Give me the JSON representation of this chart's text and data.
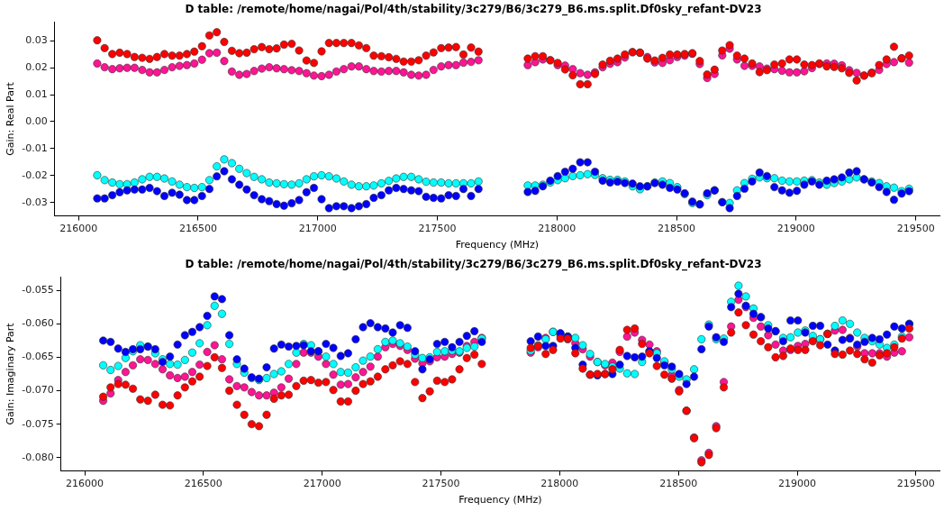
{
  "chart_data": [
    {
      "type": "scatter",
      "title": "D table: /remote/home/nagai/Pol/4th/stability/3c279/B6/3c279_B6.ms.split.Df0sky_refant-DV23",
      "xlabel": "Frequency (MHz)",
      "ylabel": "Gain: Real Part",
      "marker": "circle",
      "grid": false,
      "legend": false,
      "x": [
        216078,
        216109,
        216141,
        216172,
        216203,
        216234,
        216266,
        216297,
        216328,
        216359,
        216391,
        216422,
        216453,
        216484,
        216516,
        216547,
        216578,
        216609,
        216641,
        216672,
        216703,
        216734,
        216766,
        216797,
        216828,
        216859,
        216891,
        216922,
        216953,
        216984,
        217016,
        217047,
        217078,
        217109,
        217141,
        217172,
        217203,
        217234,
        217266,
        217297,
        217328,
        217359,
        217391,
        217422,
        217453,
        217484,
        217516,
        217547,
        217578,
        217609,
        217641,
        217672,
        217878,
        217909,
        217941,
        217972,
        218003,
        218034,
        218066,
        218097,
        218128,
        218159,
        218191,
        218222,
        218253,
        218284,
        218316,
        218347,
        218378,
        218409,
        218441,
        218472,
        218503,
        218534,
        218566,
        218597,
        218628,
        218659,
        218691,
        218722,
        218753,
        218784,
        218816,
        218847,
        218878,
        218909,
        218941,
        218972,
        219003,
        219034,
        219066,
        219097,
        219128,
        219159,
        219191,
        219222,
        219253,
        219284,
        219316,
        219347,
        219378,
        219409,
        219441,
        219472
      ],
      "xlim": [
        215900,
        219600
      ],
      "xticks": [
        216000,
        216500,
        217000,
        217500,
        218000,
        218500,
        219000,
        219500
      ],
      "ylim": [
        -0.035,
        0.037
      ],
      "yticks": [
        -0.03,
        -0.02,
        -0.01,
        {
          "value": 0,
          "label": "0.00"
        },
        0.01,
        0.02,
        0.03
      ],
      "series": [
        {
          "color": "#ff0000",
          "values": [
            0.0302,
            0.0273,
            0.0251,
            0.0256,
            0.0251,
            0.024,
            0.0237,
            0.0233,
            0.024,
            0.0251,
            0.0245,
            0.0245,
            0.0251,
            0.026,
            0.028,
            0.032,
            0.0332,
            0.0296,
            0.0263,
            0.0254,
            0.0256,
            0.0269,
            0.0277,
            0.0269,
            0.0272,
            0.0286,
            0.0289,
            0.0264,
            0.0227,
            0.0218,
            0.0261,
            0.0292,
            0.0292,
            0.0292,
            0.0292,
            0.0283,
            0.0273,
            0.0245,
            0.0243,
            0.0239,
            0.0233,
            0.0223,
            0.0223,
            0.0228,
            0.0245,
            0.0257,
            0.0273,
            0.0275,
            0.0277,
            0.0249,
            0.0275,
            0.026,
            0.0234,
            0.0243,
            0.0243,
            0.0228,
            0.0218,
            0.0194,
            0.0172,
            0.0139,
            0.0139,
            0.0177,
            0.0212,
            0.0226,
            0.0234,
            0.0249,
            0.0258,
            0.0256,
            0.0234,
            0.0227,
            0.0237,
            0.0249,
            0.0249,
            0.0251,
            0.0254,
            0.0225,
            0.0175,
            0.0193,
            0.0264,
            0.0284,
            0.0245,
            0.0234,
            0.0216,
            0.0184,
            0.0191,
            0.0212,
            0.0216,
            0.0231,
            0.0231,
            0.0212,
            0.021,
            0.0216,
            0.0205,
            0.0203,
            0.0198,
            0.0181,
            0.0153,
            0.0171,
            0.018,
            0.021,
            0.0231,
            0.0278,
            0.0235,
            0.0245
          ]
        },
        {
          "color": "#ff1493",
          "values": [
            0.0216,
            0.0202,
            0.0195,
            0.0198,
            0.02,
            0.02,
            0.0192,
            0.0183,
            0.0183,
            0.0192,
            0.0202,
            0.0207,
            0.021,
            0.0216,
            0.023,
            0.0254,
            0.0256,
            0.0225,
            0.0186,
            0.0174,
            0.0177,
            0.0188,
            0.0197,
            0.0202,
            0.0198,
            0.0195,
            0.0191,
            0.0188,
            0.018,
            0.0171,
            0.0169,
            0.0174,
            0.0186,
            0.0195,
            0.0205,
            0.0205,
            0.0195,
            0.0188,
            0.0186,
            0.0188,
            0.0188,
            0.0183,
            0.0174,
            0.0171,
            0.0174,
            0.0192,
            0.0205,
            0.021,
            0.021,
            0.0219,
            0.0222,
            0.0228,
            0.021,
            0.0221,
            0.0231,
            0.0228,
            0.021,
            0.0208,
            0.0195,
            0.018,
            0.0174,
            0.0183,
            0.0202,
            0.0215,
            0.0221,
            0.0238,
            0.0258,
            0.0256,
            0.024,
            0.022,
            0.0218,
            0.0228,
            0.024,
            0.0245,
            0.0252,
            0.0214,
            0.0162,
            0.0177,
            0.0246,
            0.0271,
            0.0231,
            0.0207,
            0.0207,
            0.0205,
            0.0197,
            0.0195,
            0.0189,
            0.0183,
            0.0183,
            0.0187,
            0.0199,
            0.0214,
            0.0216,
            0.0215,
            0.0209,
            0.0191,
            0.0181,
            0.0171,
            0.0182,
            0.0192,
            0.0214,
            0.0221,
            0.0235,
            0.0219
          ]
        },
        {
          "color": "#0000ff",
          "values": [
            -0.0285,
            -0.0285,
            -0.0273,
            -0.0262,
            -0.0255,
            -0.0252,
            -0.0252,
            -0.0246,
            -0.0258,
            -0.0276,
            -0.0264,
            -0.0271,
            -0.0291,
            -0.0291,
            -0.0276,
            -0.025,
            -0.0203,
            -0.0184,
            -0.0214,
            -0.0234,
            -0.0252,
            -0.0273,
            -0.0288,
            -0.0295,
            -0.0306,
            -0.0312,
            -0.0303,
            -0.0291,
            -0.0262,
            -0.0246,
            -0.0288,
            -0.0321,
            -0.0314,
            -0.0314,
            -0.0321,
            -0.0314,
            -0.0306,
            -0.0283,
            -0.0273,
            -0.0255,
            -0.0246,
            -0.025,
            -0.0255,
            -0.0258,
            -0.0279,
            -0.0283,
            -0.0285,
            -0.0273,
            -0.0276,
            -0.025,
            -0.0276,
            -0.025,
            -0.0261,
            -0.0257,
            -0.024,
            -0.0219,
            -0.0202,
            -0.0186,
            -0.0175,
            -0.0151,
            -0.0151,
            -0.0186,
            -0.0219,
            -0.0226,
            -0.0223,
            -0.0228,
            -0.023,
            -0.024,
            -0.024,
            -0.0228,
            -0.0234,
            -0.0246,
            -0.0252,
            -0.0266,
            -0.0297,
            -0.0307,
            -0.0266,
            -0.0255,
            -0.0299,
            -0.0321,
            -0.0276,
            -0.0249,
            -0.0222,
            -0.0189,
            -0.0202,
            -0.0243,
            -0.0255,
            -0.0264,
            -0.0257,
            -0.0234,
            -0.0222,
            -0.0234,
            -0.0219,
            -0.0214,
            -0.0207,
            -0.0189,
            -0.0184,
            -0.0214,
            -0.0226,
            -0.0243,
            -0.0261,
            -0.029,
            -0.0267,
            -0.0258
          ]
        },
        {
          "color": "#00ffff",
          "values": [
            -0.0199,
            -0.0217,
            -0.0226,
            -0.0232,
            -0.0232,
            -0.0226,
            -0.0214,
            -0.0205,
            -0.0205,
            -0.0211,
            -0.0222,
            -0.0234,
            -0.0243,
            -0.0246,
            -0.0243,
            -0.0217,
            -0.0166,
            -0.014,
            -0.0154,
            -0.0175,
            -0.0191,
            -0.0205,
            -0.0214,
            -0.0226,
            -0.0229,
            -0.0232,
            -0.0234,
            -0.0229,
            -0.0214,
            -0.0203,
            -0.0199,
            -0.0203,
            -0.0211,
            -0.0222,
            -0.0234,
            -0.024,
            -0.024,
            -0.0237,
            -0.0229,
            -0.022,
            -0.0211,
            -0.0205,
            -0.0205,
            -0.0214,
            -0.0223,
            -0.0226,
            -0.0226,
            -0.0229,
            -0.0229,
            -0.0229,
            -0.0229,
            -0.0222,
            -0.0237,
            -0.0237,
            -0.0234,
            -0.0226,
            -0.0217,
            -0.021,
            -0.0202,
            -0.0199,
            -0.0195,
            -0.0198,
            -0.021,
            -0.0216,
            -0.0216,
            -0.0222,
            -0.024,
            -0.0251,
            -0.024,
            -0.0226,
            -0.0222,
            -0.0228,
            -0.0243,
            -0.0269,
            -0.0302,
            -0.0307,
            -0.0273,
            -0.0255,
            -0.0299,
            -0.0302,
            -0.0255,
            -0.0228,
            -0.0212,
            -0.0207,
            -0.021,
            -0.021,
            -0.0219,
            -0.0222,
            -0.0222,
            -0.0219,
            -0.0217,
            -0.0226,
            -0.0234,
            -0.0228,
            -0.0222,
            -0.0214,
            -0.0207,
            -0.0214,
            -0.0222,
            -0.0228,
            -0.024,
            -0.0245,
            -0.0258,
            -0.0249
          ]
        }
      ]
    },
    {
      "type": "scatter",
      "title": "D table: /remote/home/nagai/Pol/4th/stability/3c279/B6/3c279_B6.ms.split.Df0sky_refant-DV23",
      "xlabel": "Frequency (MHz)",
      "ylabel": "Gain: Imaginary Part",
      "marker": "circle",
      "grid": false,
      "legend": false,
      "x": [
        216078,
        216109,
        216141,
        216172,
        216203,
        216234,
        216266,
        216297,
        216328,
        216359,
        216391,
        216422,
        216453,
        216484,
        216516,
        216547,
        216578,
        216609,
        216641,
        216672,
        216703,
        216734,
        216766,
        216797,
        216828,
        216859,
        216891,
        216922,
        216953,
        216984,
        217016,
        217047,
        217078,
        217109,
        217141,
        217172,
        217203,
        217234,
        217266,
        217297,
        217328,
        217359,
        217391,
        217422,
        217453,
        217484,
        217516,
        217547,
        217578,
        217609,
        217641,
        217672,
        217878,
        217909,
        217941,
        217972,
        218003,
        218034,
        218066,
        218097,
        218128,
        218159,
        218191,
        218222,
        218253,
        218284,
        218316,
        218347,
        218378,
        218409,
        218441,
        218472,
        218503,
        218534,
        218566,
        218597,
        218628,
        218659,
        218691,
        218722,
        218753,
        218784,
        218816,
        218847,
        218878,
        218909,
        218941,
        218972,
        219003,
        219034,
        219066,
        219097,
        219128,
        219159,
        219191,
        219222,
        219253,
        219284,
        219316,
        219347,
        219378,
        219409,
        219441,
        219472
      ],
      "xlim": [
        215900,
        219600
      ],
      "xticks": [
        216000,
        216500,
        217000,
        217500,
        218000,
        218500,
        219000,
        219500
      ],
      "ylim": [
        -0.082,
        -0.053
      ],
      "yticks": [
        {
          "value": -0.08,
          "label": "-0.080"
        },
        -0.075,
        {
          "value": -0.07,
          "label": "-0.070"
        },
        -0.065,
        {
          "value": -0.06,
          "label": "-0.060"
        },
        -0.055
      ],
      "series": [
        {
          "color": "#ff0000",
          "values": [
            -0.0709,
            -0.0695,
            -0.069,
            -0.0691,
            -0.0697,
            -0.0713,
            -0.0715,
            -0.0706,
            -0.0721,
            -0.0722,
            -0.0707,
            -0.0695,
            -0.0686,
            -0.0679,
            -0.0663,
            -0.065,
            -0.0666,
            -0.07,
            -0.0721,
            -0.0736,
            -0.075,
            -0.0753,
            -0.0736,
            -0.0712,
            -0.0707,
            -0.0706,
            -0.0693,
            -0.0685,
            -0.0684,
            -0.0688,
            -0.0687,
            -0.0699,
            -0.0716,
            -0.0716,
            -0.07,
            -0.069,
            -0.0686,
            -0.0679,
            -0.0668,
            -0.0662,
            -0.0656,
            -0.066,
            -0.0687,
            -0.0711,
            -0.0701,
            -0.0685,
            -0.0687,
            -0.0683,
            -0.0668,
            -0.0651,
            -0.0646,
            -0.066,
            -0.0636,
            -0.0633,
            -0.0645,
            -0.0639,
            -0.0622,
            -0.0622,
            -0.0644,
            -0.0667,
            -0.0676,
            -0.0675,
            -0.0675,
            -0.0668,
            -0.0639,
            -0.0609,
            -0.0607,
            -0.063,
            -0.0644,
            -0.0663,
            -0.0676,
            -0.0682,
            -0.0701,
            -0.073,
            -0.0771,
            -0.0807,
            -0.0796,
            -0.0756,
            -0.0695,
            -0.0613,
            -0.0583,
            -0.0602,
            -0.0616,
            -0.0626,
            -0.0635,
            -0.065,
            -0.0648,
            -0.0637,
            -0.0639,
            -0.0639,
            -0.0626,
            -0.0632,
            -0.0615,
            -0.0645,
            -0.0646,
            -0.064,
            -0.0645,
            -0.0653,
            -0.0658,
            -0.0647,
            -0.0644,
            -0.0635,
            -0.0622,
            -0.0607
          ]
        },
        {
          "color": "#0000ff",
          "values": [
            -0.0625,
            -0.0627,
            -0.0637,
            -0.0642,
            -0.0638,
            -0.0638,
            -0.0634,
            -0.0638,
            -0.0657,
            -0.0649,
            -0.0631,
            -0.0617,
            -0.0612,
            -0.0605,
            -0.0588,
            -0.0559,
            -0.0563,
            -0.0617,
            -0.0653,
            -0.0667,
            -0.068,
            -0.0682,
            -0.0665,
            -0.0637,
            -0.0631,
            -0.0634,
            -0.0633,
            -0.0632,
            -0.0641,
            -0.0641,
            -0.063,
            -0.0636,
            -0.0648,
            -0.0644,
            -0.0623,
            -0.0605,
            -0.0599,
            -0.0605,
            -0.0607,
            -0.0613,
            -0.0602,
            -0.0606,
            -0.0641,
            -0.0668,
            -0.0653,
            -0.063,
            -0.0627,
            -0.0635,
            -0.0627,
            -0.0618,
            -0.0611,
            -0.0627,
            -0.0626,
            -0.0619,
            -0.0633,
            -0.0633,
            -0.0614,
            -0.0619,
            -0.0636,
            -0.0661,
            -0.0676,
            -0.0677,
            -0.0675,
            -0.0675,
            -0.0661,
            -0.0648,
            -0.065,
            -0.0649,
            -0.0641,
            -0.0651,
            -0.0662,
            -0.0664,
            -0.0675,
            -0.069,
            -0.0679,
            -0.0638,
            -0.0604,
            -0.062,
            -0.0627,
            -0.0575,
            -0.0555,
            -0.0573,
            -0.0585,
            -0.059,
            -0.0607,
            -0.0611,
            -0.0626,
            -0.0595,
            -0.0595,
            -0.0613,
            -0.0603,
            -0.0603,
            -0.0631,
            -0.064,
            -0.0624,
            -0.0622,
            -0.0631,
            -0.0627,
            -0.0621,
            -0.0623,
            -0.0616,
            -0.0604,
            -0.0607,
            -0.06
          ]
        },
        {
          "color": "#00ffff",
          "values": [
            -0.0662,
            -0.0669,
            -0.0663,
            -0.0651,
            -0.0641,
            -0.0632,
            -0.0634,
            -0.0644,
            -0.0653,
            -0.066,
            -0.0661,
            -0.0654,
            -0.0643,
            -0.0629,
            -0.0602,
            -0.0573,
            -0.0585,
            -0.063,
            -0.066,
            -0.0673,
            -0.0681,
            -0.0684,
            -0.0681,
            -0.0675,
            -0.0671,
            -0.066,
            -0.0643,
            -0.063,
            -0.0632,
            -0.0641,
            -0.0649,
            -0.066,
            -0.0672,
            -0.0673,
            -0.0665,
            -0.0655,
            -0.0649,
            -0.0638,
            -0.0627,
            -0.0625,
            -0.0629,
            -0.0634,
            -0.0646,
            -0.0651,
            -0.065,
            -0.0642,
            -0.0641,
            -0.064,
            -0.0641,
            -0.0636,
            -0.0634,
            -0.0622,
            -0.064,
            -0.0632,
            -0.0623,
            -0.0612,
            -0.0615,
            -0.0619,
            -0.0621,
            -0.0632,
            -0.0645,
            -0.0657,
            -0.066,
            -0.0664,
            -0.0667,
            -0.0674,
            -0.0675,
            -0.0657,
            -0.0641,
            -0.0644,
            -0.0656,
            -0.0668,
            -0.0679,
            -0.0683,
            -0.0668,
            -0.0623,
            -0.0601,
            -0.0623,
            -0.0622,
            -0.0567,
            -0.0543,
            -0.0559,
            -0.0577,
            -0.059,
            -0.0602,
            -0.0611,
            -0.0621,
            -0.062,
            -0.0613,
            -0.061,
            -0.0618,
            -0.0623,
            -0.0615,
            -0.0603,
            -0.0595,
            -0.06,
            -0.0613,
            -0.0621,
            -0.0626,
            -0.0631,
            -0.0636,
            -0.0631,
            -0.0619,
            -0.06
          ]
        },
        {
          "color": "#ff1493",
          "values": [
            -0.0715,
            -0.0704,
            -0.0684,
            -0.0672,
            -0.0662,
            -0.0653,
            -0.0654,
            -0.066,
            -0.0668,
            -0.0677,
            -0.0681,
            -0.0679,
            -0.0672,
            -0.0661,
            -0.0642,
            -0.0632,
            -0.0653,
            -0.0683,
            -0.0693,
            -0.0695,
            -0.0702,
            -0.0707,
            -0.0707,
            -0.0703,
            -0.0695,
            -0.0682,
            -0.066,
            -0.0643,
            -0.0643,
            -0.0649,
            -0.066,
            -0.0676,
            -0.0691,
            -0.069,
            -0.068,
            -0.0672,
            -0.0664,
            -0.0649,
            -0.0635,
            -0.063,
            -0.0633,
            -0.0639,
            -0.0652,
            -0.0659,
            -0.0656,
            -0.065,
            -0.0649,
            -0.0645,
            -0.0643,
            -0.0633,
            -0.0627,
            -0.0621,
            -0.0643,
            -0.0635,
            -0.0621,
            -0.0612,
            -0.0617,
            -0.0623,
            -0.0629,
            -0.0638,
            -0.0649,
            -0.0657,
            -0.0662,
            -0.0658,
            -0.0642,
            -0.0619,
            -0.0613,
            -0.0624,
            -0.0631,
            -0.0641,
            -0.0658,
            -0.0677,
            -0.0699,
            -0.073,
            -0.077,
            -0.0804,
            -0.0793,
            -0.0753,
            -0.0687,
            -0.0604,
            -0.0564,
            -0.0575,
            -0.0591,
            -0.0604,
            -0.0617,
            -0.0631,
            -0.064,
            -0.0639,
            -0.0633,
            -0.063,
            -0.0625,
            -0.0623,
            -0.0615,
            -0.061,
            -0.0609,
            -0.0621,
            -0.0634,
            -0.0644,
            -0.0644,
            -0.0644,
            -0.0649,
            -0.0643,
            -0.0641,
            -0.062
          ]
        }
      ]
    }
  ]
}
